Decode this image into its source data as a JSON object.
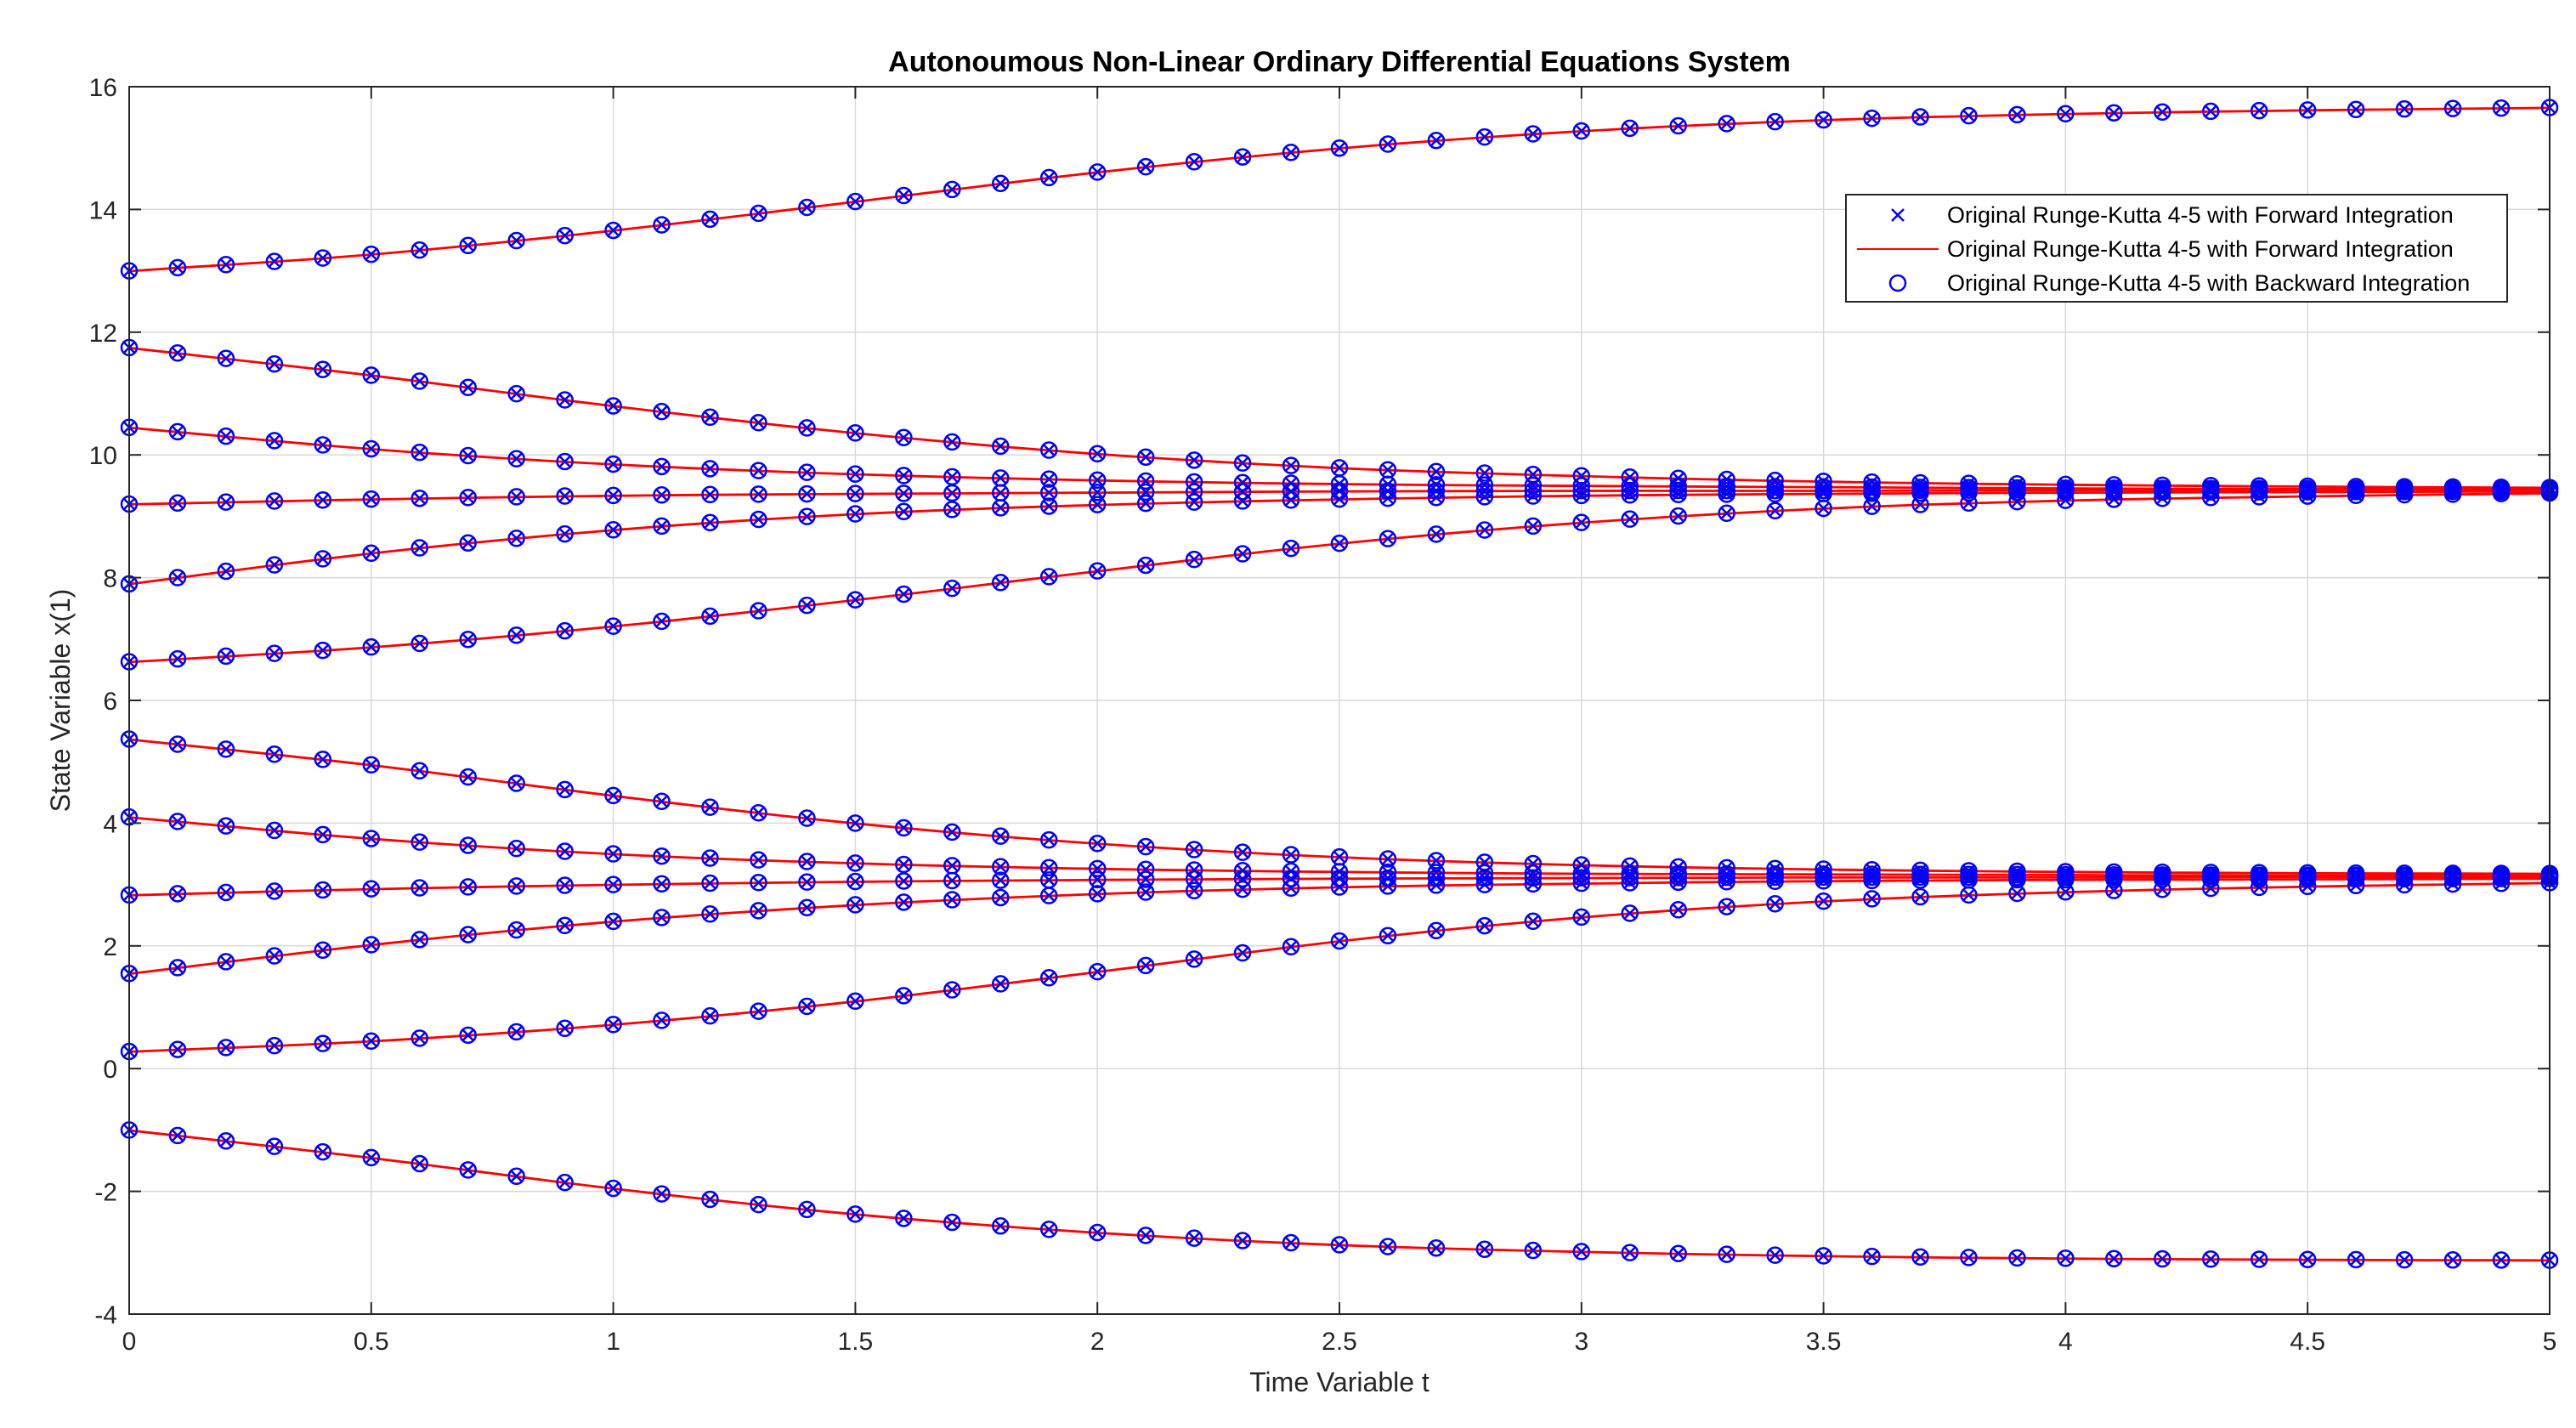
{
  "chart_data": {
    "type": "line",
    "title": "Autonoumous Non-Linear Ordinary Differential Equations System",
    "xlabel": "Time Variable t",
    "ylabel": "State Variable x(1)",
    "xlim": [
      0,
      5
    ],
    "ylim": [
      -4,
      16
    ],
    "xticks": [
      0,
      0.5,
      1,
      1.5,
      2,
      2.5,
      3,
      3.5,
      4,
      4.5,
      5
    ],
    "xtick_labels": [
      "0",
      "0.5",
      "1",
      "1.5",
      "2",
      "2.5",
      "3",
      "3.5",
      "4",
      "4.5",
      "5"
    ],
    "yticks": [
      -4,
      -2,
      0,
      2,
      4,
      6,
      8,
      10,
      12,
      14,
      16
    ],
    "ytick_labels": [
      "-4",
      "-2",
      "0",
      "2",
      "4",
      "6",
      "8",
      "10",
      "12",
      "14",
      "16"
    ],
    "grid": true,
    "legend_position": "top-right",
    "legend": [
      {
        "label": "Original Runge-Kutta 4-5 with Forward Integration",
        "style": "marker-x",
        "color": "#0000FF"
      },
      {
        "label": "Original Runge-Kutta 4-5 with Forward Integration",
        "style": "line",
        "color": "#FF0000"
      },
      {
        "label": "Original Runge-Kutta 4-5 with Backward Integration",
        "style": "marker-o",
        "color": "#0000FF"
      }
    ],
    "colors": {
      "line": "#FF0000",
      "marker": "#0000FF",
      "grid": "#D9D9D9",
      "axis": "#262626"
    },
    "x": [
      0,
      0.1,
      0.2,
      0.3,
      0.4,
      0.5,
      0.6,
      0.7,
      0.8,
      0.9,
      1,
      1.1,
      1.2,
      1.3,
      1.4,
      1.5,
      1.6,
      1.7,
      1.8,
      1.9,
      2,
      2.1,
      2.2,
      2.3,
      2.4,
      2.5,
      2.6,
      2.7,
      2.8,
      2.9,
      3,
      3.1,
      3.2,
      3.3,
      3.4,
      3.5,
      3.6,
      3.7,
      3.8,
      3.9,
      4,
      4.1,
      4.2,
      4.3,
      4.4,
      4.5,
      4.6,
      4.7,
      4.8,
      4.9,
      5
    ],
    "series": [
      {
        "name": "x0=13",
        "key_points": [
          [
            0,
            13.0
          ],
          [
            0.5,
            13.27
          ],
          [
            1,
            13.66
          ],
          [
            1.5,
            14.13
          ],
          [
            2,
            14.61
          ],
          [
            2.5,
            15.0
          ],
          [
            3,
            15.28
          ],
          [
            3.5,
            15.46
          ],
          [
            4,
            15.56
          ],
          [
            4.5,
            15.62
          ],
          [
            5,
            15.66
          ]
        ]
      },
      {
        "name": "x0=11.75",
        "key_points": [
          [
            0,
            11.75
          ],
          [
            0.5,
            11.3
          ],
          [
            1,
            10.8
          ],
          [
            1.5,
            10.36
          ],
          [
            2,
            10.02
          ],
          [
            2.5,
            9.79
          ],
          [
            3,
            9.66
          ],
          [
            3.5,
            9.57
          ],
          [
            4,
            9.52
          ],
          [
            4.5,
            9.49
          ],
          [
            5,
            9.47
          ]
        ]
      },
      {
        "name": "x0=10.45",
        "key_points": [
          [
            0,
            10.45
          ],
          [
            0.5,
            10.1
          ],
          [
            1,
            9.85
          ],
          [
            1.5,
            9.69
          ],
          [
            2,
            9.59
          ],
          [
            2.5,
            9.53
          ],
          [
            3,
            9.5
          ],
          [
            3.5,
            9.48
          ],
          [
            4,
            9.46
          ],
          [
            4.5,
            9.45
          ],
          [
            5,
            9.45
          ]
        ]
      },
      {
        "name": "x0=9.2",
        "key_points": [
          [
            0,
            9.2
          ],
          [
            0.5,
            9.28
          ],
          [
            1,
            9.34
          ],
          [
            1.5,
            9.37
          ],
          [
            2,
            9.39
          ],
          [
            2.5,
            9.41
          ],
          [
            3,
            9.42
          ],
          [
            3.5,
            9.42
          ],
          [
            4,
            9.43
          ],
          [
            4.5,
            9.43
          ],
          [
            5,
            9.43
          ]
        ]
      },
      {
        "name": "x0=7.9",
        "key_points": [
          [
            0,
            7.9
          ],
          [
            0.5,
            8.4
          ],
          [
            1,
            8.78
          ],
          [
            1.5,
            9.04
          ],
          [
            2,
            9.19
          ],
          [
            2.5,
            9.28
          ],
          [
            3,
            9.34
          ],
          [
            3.5,
            9.37
          ],
          [
            4,
            9.39
          ],
          [
            4.5,
            9.4
          ],
          [
            5,
            9.41
          ]
        ]
      },
      {
        "name": "x0=6.63",
        "key_points": [
          [
            0,
            6.63
          ],
          [
            0.5,
            6.87
          ],
          [
            1,
            7.21
          ],
          [
            1.5,
            7.64
          ],
          [
            2,
            8.11
          ],
          [
            2.5,
            8.56
          ],
          [
            3,
            8.9
          ],
          [
            3.5,
            9.13
          ],
          [
            4,
            9.26
          ],
          [
            4.5,
            9.33
          ],
          [
            5,
            9.38
          ]
        ]
      },
      {
        "name": "x0=5.37",
        "key_points": [
          [
            0,
            5.37
          ],
          [
            0.5,
            4.95
          ],
          [
            1,
            4.45
          ],
          [
            1.5,
            4.0
          ],
          [
            2,
            3.67
          ],
          [
            2.5,
            3.45
          ],
          [
            3,
            3.32
          ],
          [
            3.5,
            3.25
          ],
          [
            4,
            3.21
          ],
          [
            4.5,
            3.19
          ],
          [
            5,
            3.18
          ]
        ]
      },
      {
        "name": "x0=4.1",
        "key_points": [
          [
            0,
            4.1
          ],
          [
            0.5,
            3.75
          ],
          [
            1,
            3.5
          ],
          [
            1.5,
            3.35
          ],
          [
            2,
            3.26
          ],
          [
            2.5,
            3.21
          ],
          [
            3,
            3.18
          ],
          [
            3.5,
            3.17
          ],
          [
            4,
            3.16
          ],
          [
            4.5,
            3.15
          ],
          [
            5,
            3.15
          ]
        ]
      },
      {
        "name": "x0=2.83",
        "key_points": [
          [
            0,
            2.83
          ],
          [
            0.5,
            2.93
          ],
          [
            1,
            3.0
          ],
          [
            1.5,
            3.05
          ],
          [
            2,
            3.08
          ],
          [
            2.5,
            3.1
          ],
          [
            3,
            3.11
          ],
          [
            3.5,
            3.12
          ],
          [
            4,
            3.12
          ],
          [
            4.5,
            3.13
          ],
          [
            5,
            3.13
          ]
        ]
      },
      {
        "name": "x0=1.55",
        "key_points": [
          [
            0,
            1.55
          ],
          [
            0.5,
            2.02
          ],
          [
            1,
            2.4
          ],
          [
            1.5,
            2.67
          ],
          [
            2,
            2.85
          ],
          [
            2.5,
            2.96
          ],
          [
            3,
            3.02
          ],
          [
            3.5,
            3.06
          ],
          [
            4,
            3.08
          ],
          [
            4.5,
            3.09
          ],
          [
            5,
            3.1
          ]
        ]
      },
      {
        "name": "x0=0.28",
        "key_points": [
          [
            0,
            0.28
          ],
          [
            0.5,
            0.45
          ],
          [
            1,
            0.72
          ],
          [
            1.5,
            1.1
          ],
          [
            2,
            1.58
          ],
          [
            2.5,
            2.08
          ],
          [
            3,
            2.47
          ],
          [
            3.5,
            2.73
          ],
          [
            4,
            2.88
          ],
          [
            4.5,
            2.97
          ],
          [
            5,
            3.03
          ]
        ]
      },
      {
        "name": "x0=-1",
        "key_points": [
          [
            0,
            -1.0
          ],
          [
            0.5,
            -1.45
          ],
          [
            1,
            -1.95
          ],
          [
            1.5,
            -2.37
          ],
          [
            2,
            -2.67
          ],
          [
            2.5,
            -2.87
          ],
          [
            3,
            -2.98
          ],
          [
            3.5,
            -3.05
          ],
          [
            4,
            -3.09
          ],
          [
            4.5,
            -3.11
          ],
          [
            5,
            -3.12
          ]
        ]
      }
    ]
  }
}
